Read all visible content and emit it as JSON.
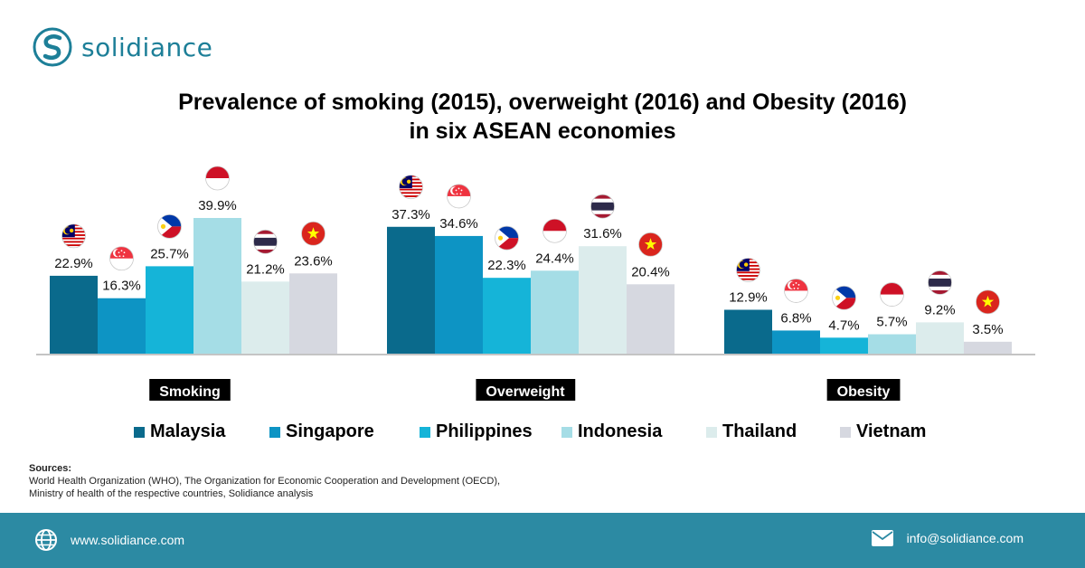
{
  "brand": {
    "name": "solidiance"
  },
  "title": {
    "line1": "Prevalence of smoking (2015), overweight (2016) and Obesity (2016)",
    "line2": "in six ASEAN economies"
  },
  "colors": {
    "Malaysia": "#0a6a8c",
    "Singapore": "#0d94c4",
    "Philippines": "#15b4d8",
    "Indonesia": "#a5dde6",
    "Thailand": "#dcecec",
    "Vietnam": "#d6d8e0",
    "footer": "#2c8aa3",
    "brand": "#1d7f98"
  },
  "chart_data": {
    "type": "bar",
    "title": "Prevalence of smoking (2015), overweight (2016) and Obesity (2016) in six ASEAN economies",
    "categories": [
      "Smoking",
      "Overweight",
      "Obesity"
    ],
    "series": [
      {
        "name": "Malaysia",
        "values": [
          22.9,
          37.3,
          12.9
        ],
        "labels": [
          "22.9%",
          "37.3%",
          "12.9%"
        ],
        "flag": "malaysia-flag-icon"
      },
      {
        "name": "Singapore",
        "values": [
          16.3,
          34.6,
          6.8
        ],
        "labels": [
          "16.3%",
          "34.6%",
          "6.8%"
        ],
        "flag": "singapore-flag-icon"
      },
      {
        "name": "Philippines",
        "values": [
          25.7,
          22.3,
          4.7
        ],
        "labels": [
          "25.7%",
          "22.3%",
          "4.7%"
        ],
        "flag": "philippines-flag-icon"
      },
      {
        "name": "Indonesia",
        "values": [
          39.9,
          24.4,
          5.7
        ],
        "labels": [
          "39.9%",
          "24.4%",
          "5.7%"
        ],
        "flag": "indonesia-flag-icon"
      },
      {
        "name": "Thailand",
        "values": [
          21.2,
          31.6,
          9.2
        ],
        "labels": [
          "21.2%",
          "31.6%",
          "9.2%"
        ],
        "flag": "thailand-flag-icon"
      },
      {
        "name": "Vietnam",
        "values": [
          23.6,
          20.4,
          3.5
        ],
        "labels": [
          "23.6%",
          "20.4%",
          "3.5%"
        ],
        "flag": "vietnam-flag-icon"
      }
    ],
    "ylim": [
      0,
      39.9
    ],
    "grid": false,
    "legend_position": "bottom"
  },
  "sources": {
    "title": "Sources:",
    "line1": "World Health Organization (WHO), The Organization for Economic Cooperation and Development (OECD),",
    "line2": "Ministry of health of the respective countries, Solidiance analysis"
  },
  "footer": {
    "website": "www.solidiance.com",
    "email": "info@solidiance.com",
    "website_icon": "globe-icon",
    "email_icon": "envelope-icon"
  }
}
